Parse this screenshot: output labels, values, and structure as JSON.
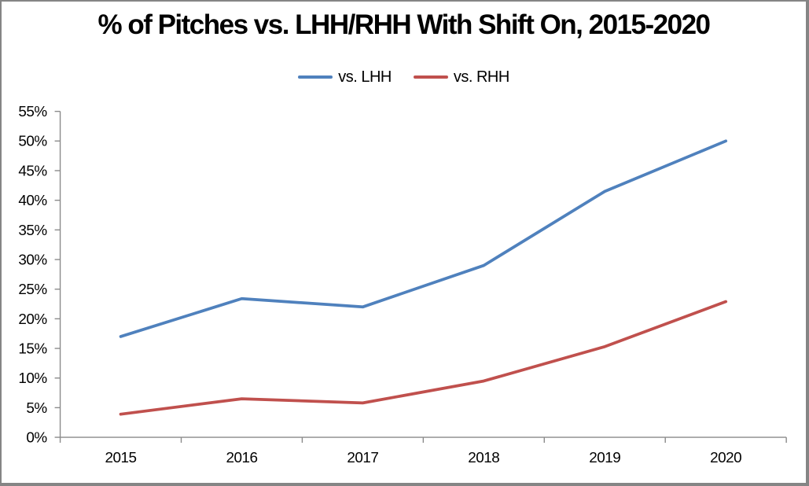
{
  "window": {
    "background": "#ffffff",
    "border_color": "#858585"
  },
  "chart_data": {
    "type": "line",
    "title": "% of Pitches vs. LHH/RHH With Shift On, 2015-2020",
    "categories": [
      "2015",
      "2016",
      "2017",
      "2018",
      "2019",
      "2020"
    ],
    "series": [
      {
        "name": "vs. LHH",
        "color": "#4F81BD",
        "values": [
          17.0,
          23.4,
          22.0,
          29.0,
          41.5,
          50.0
        ]
      },
      {
        "name": "vs. RHH",
        "color": "#C0504D",
        "values": [
          3.9,
          6.5,
          5.8,
          9.5,
          15.3,
          22.9
        ]
      }
    ],
    "xlabel": "",
    "ylabel": "",
    "ylim": [
      0,
      55
    ],
    "ytick_step": 5,
    "ytick_labels": [
      "0%",
      "5%",
      "10%",
      "15%",
      "20%",
      "25%",
      "30%",
      "35%",
      "40%",
      "45%",
      "50%",
      "55%"
    ],
    "legend_position": "top-center",
    "grid": false,
    "axis_color": "#8A8A8A",
    "text_color": "#000000",
    "line_width": 3.8
  }
}
